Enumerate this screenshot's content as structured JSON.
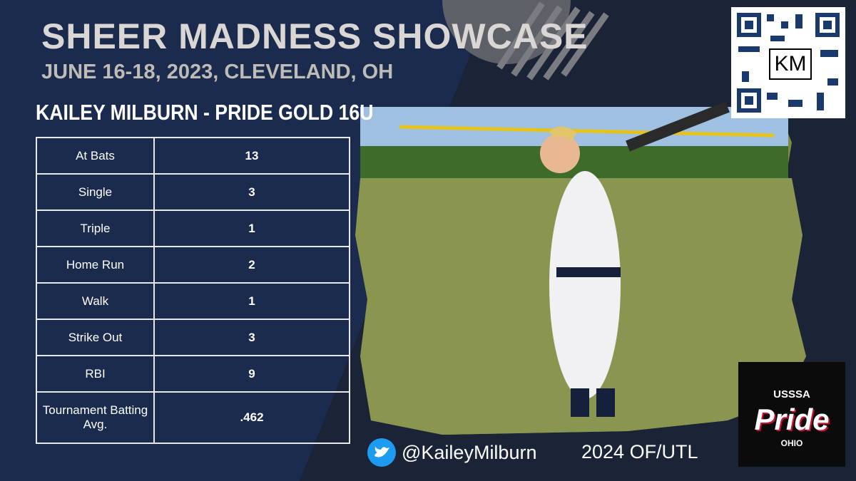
{
  "header": {
    "title": "SHEER MADNESS SHOWCASE",
    "subtitle": "JUNE 16-18, 2023, CLEVELAND, OH",
    "player": "KAILEY MILBURN - PRIDE GOLD 16U"
  },
  "table": {
    "rows": [
      [
        "At Bats",
        "13"
      ],
      [
        "Single",
        "3"
      ],
      [
        "Triple",
        "1"
      ],
      [
        "Home Run",
        "2"
      ],
      [
        "Walk",
        "1"
      ],
      [
        "Strike Out",
        "3"
      ],
      [
        "RBI",
        "9"
      ],
      [
        "Tournament Batting Avg.",
        ".462"
      ]
    ]
  },
  "footer": {
    "twitter": "@KaileyMilburn",
    "position": "2024 OF/UTL"
  },
  "qr": {
    "label": "KM"
  },
  "logo": {
    "top": "USSSA",
    "name": "Pride",
    "state": "OHIO"
  }
}
